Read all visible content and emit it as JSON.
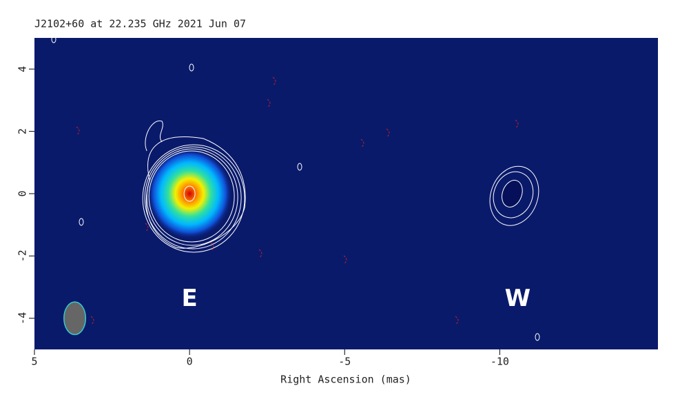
{
  "chart_data": {
    "type": "contour",
    "title": "J2102+60 at 22.235 GHz 2021 Jun 07",
    "x_label": "Right Ascension  (mas)",
    "xlim": [
      5,
      -15.1
    ],
    "xticks": [
      5,
      0,
      -5,
      -10
    ],
    "ylim": [
      -5,
      5
    ],
    "yticks": [
      -4,
      -2,
      0,
      2,
      4
    ],
    "background": "#0a1a6b",
    "components": [
      {
        "name": "E",
        "x": 0,
        "y": 0,
        "label_y": -3.4
      },
      {
        "name": "W",
        "x": -10.4,
        "y": 0,
        "label_y": -3.4
      }
    ],
    "beam": {
      "x": 3.7,
      "y": -4,
      "minor": 0.7,
      "major": 1.05,
      "color": "#666666"
    }
  }
}
